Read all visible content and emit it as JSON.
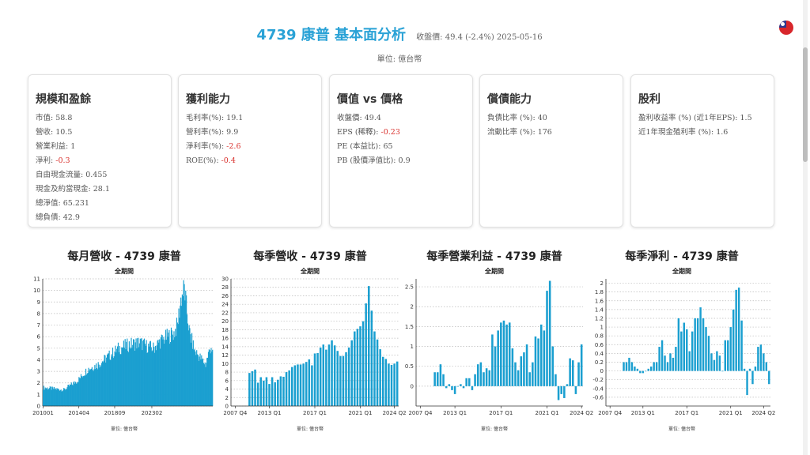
{
  "header": {
    "title": "4739 康普 基本面分析",
    "price": "收盤價: 49.4 (-2.4%) 2025-05-16",
    "unit": "單位: 億台幣"
  },
  "cards": [
    {
      "title": "規模和盈餘",
      "rows": [
        {
          "label": "市值: ",
          "value": "58.8",
          "neg": false
        },
        {
          "label": "營收: ",
          "value": "10.5",
          "neg": false
        },
        {
          "label": "營業利益: ",
          "value": "1",
          "neg": false
        },
        {
          "label": "淨利: ",
          "value": "-0.3",
          "neg": true
        },
        {
          "label": "自由現金流量: ",
          "value": "0.455",
          "neg": false
        },
        {
          "label": "現金及約當現金: ",
          "value": "28.1",
          "neg": false
        },
        {
          "label": "總淨值: ",
          "value": "65.231",
          "neg": false
        },
        {
          "label": "總負債: ",
          "value": "42.9",
          "neg": false
        }
      ]
    },
    {
      "title": "獲利能力",
      "rows": [
        {
          "label": "毛利率(%): ",
          "value": "19.1",
          "neg": false
        },
        {
          "label": "營利率(%): ",
          "value": "9.9",
          "neg": false
        },
        {
          "label": "淨利率(%): ",
          "value": "-2.6",
          "neg": true
        },
        {
          "label": "ROE(%): ",
          "value": "-0.4",
          "neg": true
        }
      ]
    },
    {
      "title": "價值 vs 價格",
      "rows": [
        {
          "label": "收盤價: ",
          "value": "49.4",
          "neg": false
        },
        {
          "label": "EPS (稀釋): ",
          "value": "-0.23",
          "neg": true
        },
        {
          "label": "PE (本益比): ",
          "value": "65",
          "neg": false
        },
        {
          "label": "PB (股價淨值比): ",
          "value": "0.9",
          "neg": false
        }
      ]
    },
    {
      "title": "償債能力",
      "rows": [
        {
          "label": "負債比率 (%): ",
          "value": "40",
          "neg": false
        },
        {
          "label": "流動比率 (%): ",
          "value": "176",
          "neg": false
        }
      ]
    },
    {
      "title": "股利",
      "rows": [
        {
          "label": "盈利收益率 (%) (近1年EPS): ",
          "value": "1.5",
          "neg": false
        },
        {
          "label": "近1年現金殖利率 (%): ",
          "value": "1.6",
          "neg": false
        }
      ]
    }
  ],
  "colors": {
    "accent": "#2aa2d6",
    "bar": "#1a9fd0",
    "negative": "#d9302c"
  },
  "chart_data": [
    {
      "type": "bar",
      "title": "每月營收 - 4739 康普",
      "subtitle": "全期間",
      "unit": "單位: 億台幣",
      "ylim": [
        0,
        11
      ],
      "yticks": [
        0,
        1,
        2,
        3,
        4,
        5,
        6,
        7,
        8,
        9,
        10,
        11
      ],
      "xticklabels": [
        "201001",
        "201404",
        "201809",
        "202302"
      ],
      "anchors": [
        [
          0,
          1.6
        ],
        [
          30,
          1.4
        ],
        [
          50,
          2.2
        ],
        [
          65,
          3.2
        ],
        [
          80,
          3.6
        ],
        [
          95,
          4.3
        ],
        [
          110,
          5.0
        ],
        [
          125,
          5.3
        ],
        [
          140,
          5.5
        ],
        [
          150,
          5.2
        ],
        [
          160,
          5.0
        ],
        [
          170,
          5.6
        ],
        [
          180,
          6.0
        ],
        [
          190,
          6.3
        ],
        [
          195,
          7.0
        ],
        [
          200,
          9.2
        ],
        [
          205,
          10.2
        ],
        [
          208,
          8.6
        ],
        [
          212,
          6.5
        ],
        [
          220,
          4.8
        ],
        [
          228,
          4.2
        ],
        [
          236,
          3.6
        ],
        [
          240,
          4.5
        ],
        [
          244,
          5.2
        ],
        [
          246,
          4.6
        ]
      ],
      "count": 247,
      "noise": 0.12
    },
    {
      "type": "bar",
      "title": "每季營收 - 4739 康普",
      "subtitle": "全期間",
      "unit": "單位: 億台幣",
      "ylim": [
        0,
        30
      ],
      "yticks": [
        0,
        2,
        4,
        6,
        8,
        10,
        12,
        14,
        16,
        18,
        20,
        22,
        24,
        26,
        28,
        30
      ],
      "xticklabels": [
        "2007 Q4",
        "2013 Q1",
        "2017 Q1",
        "2021 Q1",
        "2024 Q2"
      ],
      "values": [
        null,
        null,
        null,
        null,
        null,
        null,
        7.8,
        8.2,
        8.6,
        5.5,
        6.8,
        6.0,
        6.8,
        5.2,
        6.8,
        5.6,
        6.2,
        7.0,
        6.9,
        8.0,
        8.4,
        9.2,
        9.6,
        9.8,
        9.8,
        10.0,
        10.4,
        11.0,
        9.6,
        12.4,
        12.5,
        13.8,
        14.5,
        13.3,
        14.5,
        15.5,
        14.3,
        13.0,
        11.8,
        11.8,
        12.7,
        13.8,
        15.5,
        17.6,
        18.2,
        18.8,
        20.0,
        24.2,
        28.3,
        22.5,
        17.6,
        15.7,
        13.4,
        11.6,
        11.1,
        10.0,
        9.7,
        10.0,
        10.5
      ],
      "xtick_index": [
        1,
        13,
        29,
        45,
        57
      ]
    },
    {
      "type": "bar",
      "title": "每季營業利益 - 4739 康普",
      "subtitle": "全期間",
      "unit": "單位: 億台幣",
      "ylim": [
        -0.5,
        2.7
      ],
      "yticks": [
        0,
        0.5,
        1,
        1.5,
        2,
        2.5
      ],
      "xticklabels": [
        "2007 Q4",
        "2013 Q1",
        "2017 Q1",
        "2021 Q1",
        "2024 Q2"
      ],
      "values": [
        null,
        null,
        null,
        null,
        null,
        null,
        0.35,
        0.35,
        0.55,
        0.3,
        -0.05,
        0.05,
        -0.1,
        -0.2,
        0.0,
        0.05,
        -0.05,
        0.2,
        0.2,
        -0.1,
        0.3,
        0.55,
        0.6,
        0.35,
        0.45,
        0.4,
        1.3,
        1.0,
        1.4,
        1.6,
        1.65,
        1.55,
        1.6,
        0.95,
        0.6,
        0.4,
        0.75,
        0.85,
        1.05,
        0.35,
        0.6,
        1.25,
        1.2,
        1.55,
        1.4,
        2.4,
        2.65,
        1.0,
        0.3,
        -0.35,
        -0.2,
        -0.3,
        0.05,
        0.7,
        0.65,
        -0.2,
        0.6,
        1.05
      ],
      "xtick_index": [
        1,
        13,
        29,
        45,
        57
      ]
    },
    {
      "type": "bar",
      "title": "每季淨利 - 4739 康普",
      "subtitle": "全期間",
      "unit": "單位: 億台幣",
      "ylim": [
        -0.8,
        2.1
      ],
      "yticks": [
        -0.6,
        -0.4,
        -0.2,
        0,
        0.2,
        0.4,
        0.6,
        0.8,
        1,
        1.2,
        1.4,
        1.6,
        1.8,
        2
      ],
      "xticklabels": [
        "2007 Q4",
        "2013 Q1",
        "2017 Q1",
        "2021 Q1",
        "2024 Q2"
      ],
      "values": [
        null,
        null,
        null,
        null,
        null,
        null,
        0.2,
        0.2,
        0.3,
        0.2,
        0.1,
        0.05,
        -0.05,
        -0.05,
        0.0,
        0.05,
        0.1,
        0.2,
        0.2,
        0.55,
        0.7,
        0.35,
        0.2,
        0.4,
        0.3,
        0.55,
        1.2,
        0.9,
        1.1,
        0.95,
        0.45,
        0.9,
        1.2,
        1.2,
        1.45,
        1.2,
        1.0,
        0.8,
        0.4,
        0.25,
        0.45,
        0.35,
        0.0,
        0.7,
        0.7,
        1.0,
        1.4,
        1.85,
        1.9,
        1.15,
        0.05,
        -0.55,
        0.05,
        -0.3,
        0.1,
        0.55,
        0.6,
        0.4,
        0.2,
        -0.3
      ],
      "xtick_index": [
        1,
        13,
        29,
        45,
        57
      ]
    }
  ]
}
